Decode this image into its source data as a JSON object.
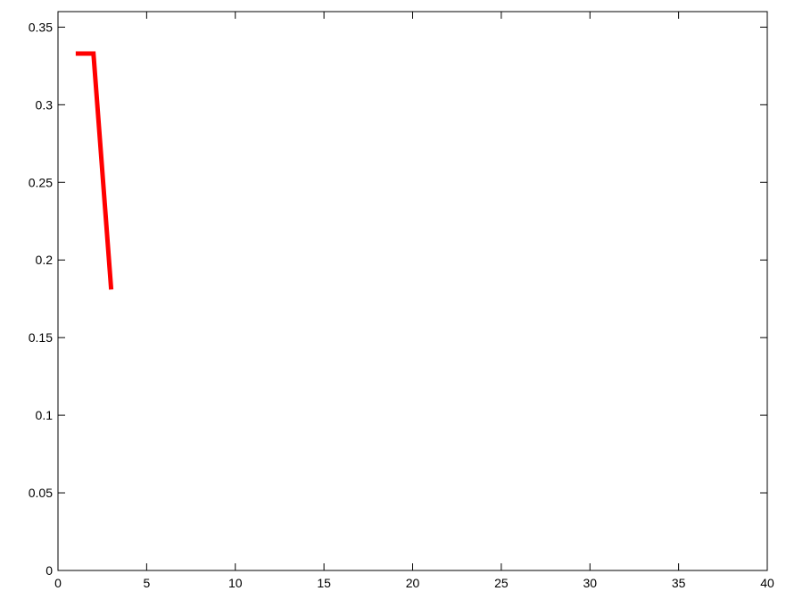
{
  "chart_data": {
    "type": "line",
    "title": "",
    "xlabel": "",
    "ylabel": "",
    "xlim": [
      0,
      40
    ],
    "ylim": [
      0,
      0.36
    ],
    "x_ticks": [
      0,
      5,
      10,
      15,
      20,
      25,
      30,
      35,
      40
    ],
    "x_tick_labels": [
      "0",
      "5",
      "10",
      "15",
      "20",
      "25",
      "30",
      "35",
      "40"
    ],
    "y_ticks": [
      0,
      0.05,
      0.1,
      0.15,
      0.2,
      0.25,
      0.3,
      0.35
    ],
    "y_tick_labels": [
      "0",
      "0.05",
      "0.1",
      "0.15",
      "0.2",
      "0.25",
      "0.3",
      "0.35"
    ],
    "grid": false,
    "box": true,
    "series": [
      {
        "color": "#ff0000",
        "x": [
          1,
          2,
          3
        ],
        "y": [
          0.333,
          0.333,
          0.181
        ]
      }
    ]
  }
}
